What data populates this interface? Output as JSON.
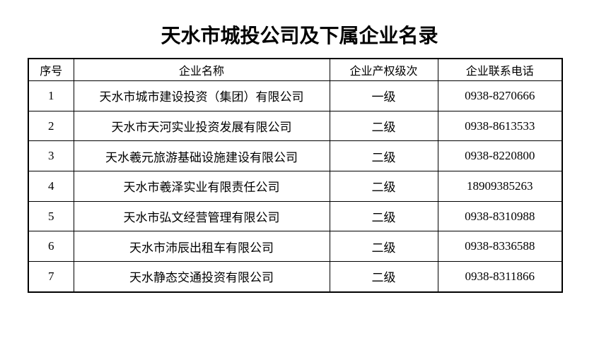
{
  "title": "天水市城投公司及下属企业名录",
  "table": {
    "headers": [
      "序号",
      "企业名称",
      "企业产权级次",
      "企业联系电话"
    ],
    "rows": [
      [
        "1",
        "天水市城市建设投资（集团）有限公司",
        "一级",
        "0938-8270666"
      ],
      [
        "2",
        "天水市天河实业投资发展有限公司",
        "二级",
        "0938-8613533"
      ],
      [
        "3",
        "天水羲元旅游基础设施建设有限公司",
        "二级",
        "0938-8220800"
      ],
      [
        "4",
        "天水市羲泽实业有限责任公司",
        "二级",
        "18909385263"
      ],
      [
        "5",
        "天水市弘文经营管理有限公司",
        "二级",
        "0938-8310988"
      ],
      [
        "6",
        "天水市沛辰出租车有限公司",
        "二级",
        "0938-8336588"
      ],
      [
        "7",
        "天水静态交通投资有限公司",
        "二级",
        "0938-8311866"
      ]
    ]
  },
  "colors": {
    "text": "#000000",
    "border": "#000000",
    "background": "#ffffff"
  }
}
